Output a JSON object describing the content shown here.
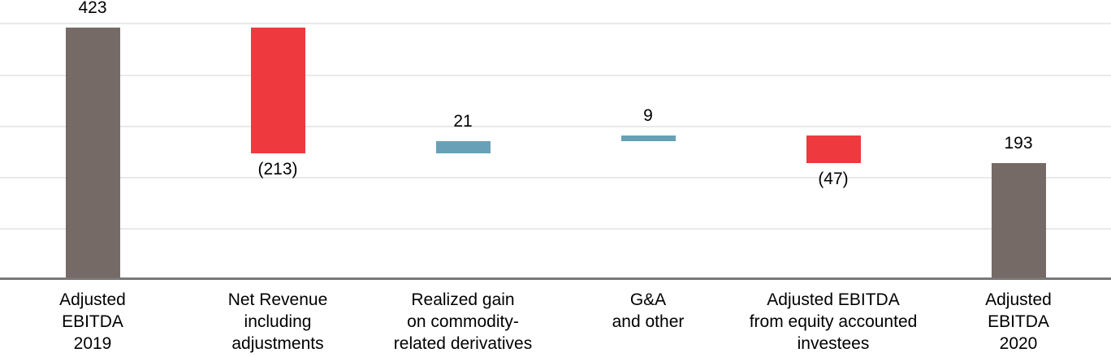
{
  "chart_data": {
    "type": "bar",
    "subtype": "waterfall",
    "title": "",
    "xlabel": "",
    "ylabel": "",
    "legend": "none",
    "grid": "horizontal-gridlines",
    "y_axis_tick_labels_visible": false,
    "ylim": [
      0,
      431
    ],
    "categories": [
      [
        "Adjusted",
        "EBITDA",
        "2019"
      ],
      [
        "Net Revenue",
        "including",
        "adjustments"
      ],
      [
        "Realized gain",
        "on commodity-",
        "related derivatives"
      ],
      [
        "G&A",
        "and other"
      ],
      [
        "Adjusted EBITDA",
        "from equity accounted",
        "investees"
      ],
      [
        "Adjusted",
        "EBITDA",
        "2020"
      ]
    ],
    "steps": [
      {
        "label": "423",
        "value": 423,
        "kind": "total",
        "start": 0,
        "end": 423
      },
      {
        "label": "(213)",
        "value": -213,
        "kind": "decrease",
        "start": 423,
        "end": 210
      },
      {
        "label": "21",
        "value": 21,
        "kind": "increase",
        "start": 210,
        "end": 231
      },
      {
        "label": "9",
        "value": 9,
        "kind": "increase",
        "start": 231,
        "end": 240
      },
      {
        "label": "(47)",
        "value": -47,
        "kind": "decrease",
        "start": 240,
        "end": 193
      },
      {
        "label": "193",
        "value": 193,
        "kind": "total",
        "start": 0,
        "end": 193
      }
    ],
    "colors": {
      "total_bar": "#756A65",
      "decrease_bar": "#EE3A3F",
      "increase_bar": "#68A0B7",
      "gridline": "#E9E9E9",
      "axis_line": "#787878",
      "label_text": "#000000"
    }
  }
}
